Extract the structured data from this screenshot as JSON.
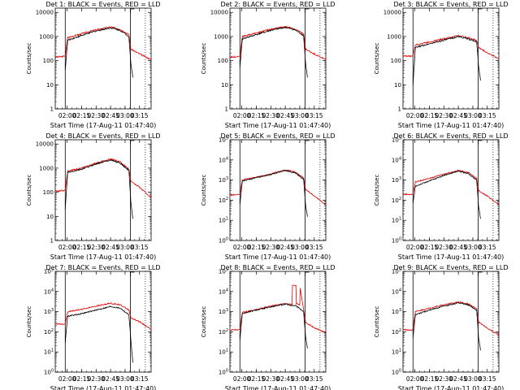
{
  "figure": {
    "xlabel": "Start Time (17-Aug-11 01:47:40)",
    "ylabel": "Counts/sec",
    "colors": {
      "events": "#000000",
      "lld": "#e00000",
      "frame": "#000000"
    }
  },
  "chart_data": [
    {
      "type": "line",
      "title": "Det 1: BLACK = Events, RED = LLD",
      "xlabel": "Start Time (17-Aug-11 01:47:40)",
      "ylabel": "Counts/sec",
      "xlim": [
        "01:47:40",
        "03:27:00"
      ],
      "ylim": [
        1,
        15000
      ],
      "yscale": "log",
      "x_ticks": [
        "02:00",
        "02:15",
        "02:30",
        "02:45",
        "03:00",
        "03:15"
      ],
      "y_tick_style": "plain",
      "y_ticks": [
        1,
        10,
        100,
        1000,
        10000
      ],
      "series": [
        {
          "color": "#e00000",
          "x": [
            "01:47:40",
            "01:57:00",
            "01:58:00",
            "02:00:30",
            "02:15:00",
            "02:30:00",
            "02:45:00",
            "02:55:00",
            "03:04:00",
            "03:06:00",
            "03:16:00",
            "03:27:00"
          ],
          "y": [
            140,
            150,
            160,
            900,
            1300,
            1900,
            2500,
            2000,
            1200,
            300,
            180,
            110
          ]
        },
        {
          "color": "#000000",
          "x": [
            "01:58:00",
            "02:00:30",
            "02:15:00",
            "02:30:00",
            "02:45:00",
            "02:55:00",
            "03:04:00",
            "03:06:00",
            "03:08:00"
          ],
          "y": [
            40,
            700,
            1100,
            1700,
            2300,
            1800,
            1000,
            80,
            20
          ]
        }
      ]
    },
    {
      "type": "line",
      "title": "Det 2: BLACK = Events, RED = LLD",
      "xlabel": "Start Time (17-Aug-11 01:47:40)",
      "ylabel": "Counts/sec",
      "xlim": [
        "01:47:40",
        "03:27:00"
      ],
      "ylim": [
        1,
        15000
      ],
      "yscale": "log",
      "x_ticks": [
        "02:00",
        "02:15",
        "02:30",
        "02:45",
        "03:00",
        "03:15"
      ],
      "y_tick_style": "plain",
      "y_ticks": [
        1,
        10,
        100,
        1000,
        10000
      ],
      "series": [
        {
          "color": "#e00000",
          "x": [
            "01:47:40",
            "01:57:00",
            "01:58:00",
            "02:00:30",
            "02:15:00",
            "02:30:00",
            "02:45:00",
            "02:55:00",
            "03:04:00",
            "03:06:00",
            "03:16:00",
            "03:27:00"
          ],
          "y": [
            140,
            150,
            160,
            1000,
            1400,
            2000,
            2600,
            2000,
            1300,
            300,
            180,
            110
          ]
        },
        {
          "color": "#000000",
          "x": [
            "01:58:00",
            "02:00:30",
            "02:15:00",
            "02:30:00",
            "02:45:00",
            "02:55:00",
            "03:04:00",
            "03:06:00",
            "03:08:00"
          ],
          "y": [
            50,
            800,
            1200,
            1800,
            2400,
            1900,
            1100,
            80,
            20
          ]
        }
      ]
    },
    {
      "type": "line",
      "title": "Det 3: BLACK = Events, RED = LLD",
      "xlabel": "Start Time (17-Aug-11 01:47:40)",
      "ylabel": "Counts/sec",
      "xlim": [
        "01:47:40",
        "03:27:00"
      ],
      "ylim": [
        1,
        15000
      ],
      "yscale": "log",
      "x_ticks": [
        "02:00",
        "02:15",
        "02:30",
        "02:45",
        "03:00",
        "03:15"
      ],
      "y_tick_style": "plain",
      "y_ticks": [
        1,
        10,
        100,
        1000,
        10000
      ],
      "series": [
        {
          "color": "#e00000",
          "x": [
            "01:47:40",
            "01:57:00",
            "01:58:00",
            "02:00:30",
            "02:15:00",
            "02:30:00",
            "02:45:00",
            "02:55:00",
            "03:04:00",
            "03:06:00",
            "03:16:00",
            "03:27:00"
          ],
          "y": [
            160,
            150,
            170,
            450,
            600,
            800,
            1100,
            900,
            700,
            350,
            200,
            120
          ]
        },
        {
          "color": "#000000",
          "x": [
            "01:58:00",
            "02:00:30",
            "02:15:00",
            "02:30:00",
            "02:45:00",
            "02:55:00",
            "03:04:00",
            "03:06:00",
            "03:08:00"
          ],
          "y": [
            10,
            350,
            500,
            700,
            1000,
            800,
            600,
            60,
            15
          ]
        }
      ]
    },
    {
      "type": "line",
      "title": "Det 4: BLACK = Events, RED = LLD",
      "xlabel": "Start Time (17-Aug-11 01:47:40)",
      "ylabel": "Counts/sec",
      "xlim": [
        "01:47:40",
        "03:27:00"
      ],
      "ylim": [
        1,
        15000
      ],
      "yscale": "log",
      "x_ticks": [
        "02:00",
        "02:15",
        "02:30",
        "02:45",
        "03:00",
        "03:15"
      ],
      "y_tick_style": "plain",
      "y_ticks": [
        1,
        10,
        100,
        1000,
        10000
      ],
      "series": [
        {
          "color": "#e00000",
          "x": [
            "01:47:40",
            "01:57:00",
            "01:58:00",
            "02:00:30",
            "02:15:00",
            "02:30:00",
            "02:45:00",
            "02:55:00",
            "03:04:00",
            "03:06:00",
            "03:16:00",
            "03:27:00"
          ],
          "y": [
            110,
            120,
            130,
            750,
            1000,
            1600,
            2400,
            1800,
            900,
            300,
            150,
            60
          ]
        },
        {
          "color": "#000000",
          "x": [
            "01:58:00",
            "02:00:30",
            "02:15:00",
            "02:30:00",
            "02:45:00",
            "02:55:00",
            "03:04:00",
            "03:06:00",
            "03:08:00"
          ],
          "y": [
            20,
            650,
            900,
            1500,
            2200,
            1600,
            800,
            40,
            8
          ]
        }
      ]
    },
    {
      "type": "line",
      "title": "Det 5: BLACK = Events, RED = LLD",
      "xlabel": "Start Time (17-Aug-11 01:47:40)",
      "ylabel": "Counts/sec",
      "xlim": [
        "01:47:40",
        "03:27:00"
      ],
      "ylim": [
        1,
        100000
      ],
      "yscale": "log",
      "x_ticks": [
        "02:00",
        "02:15",
        "02:30",
        "02:45",
        "03:00",
        "03:15"
      ],
      "y_tick_style": "exp",
      "y_ticks": [
        1,
        10,
        100,
        1000,
        10000,
        100000
      ],
      "series": [
        {
          "color": "#e00000",
          "x": [
            "01:47:40",
            "01:57:00",
            "01:58:00",
            "02:00:30",
            "02:15:00",
            "02:30:00",
            "02:45:00",
            "02:55:00",
            "03:04:00",
            "03:06:00",
            "03:16:00",
            "03:27:00"
          ],
          "y": [
            180,
            190,
            200,
            1000,
            1400,
            2000,
            3200,
            2500,
            1300,
            350,
            150,
            60
          ]
        },
        {
          "color": "#000000",
          "x": [
            "01:58:00",
            "02:00:30",
            "02:15:00",
            "02:30:00",
            "02:45:00",
            "02:55:00",
            "03:04:00",
            "03:06:00",
            "03:08:00"
          ],
          "y": [
            60,
            900,
            1300,
            1900,
            3000,
            2300,
            1100,
            60,
            15
          ]
        }
      ]
    },
    {
      "type": "line",
      "title": "Det 6: BLACK = Events, RED = LLD",
      "xlabel": "Start Time (17-Aug-11 01:47:40)",
      "ylabel": "Counts/sec",
      "xlim": [
        "01:47:40",
        "03:27:00"
      ],
      "ylim": [
        1,
        100000
      ],
      "yscale": "log",
      "x_ticks": [
        "02:00",
        "02:15",
        "02:30",
        "02:45",
        "03:00",
        "03:15"
      ],
      "y_tick_style": "exp",
      "y_ticks": [
        1,
        10,
        100,
        1000,
        10000,
        100000
      ],
      "series": [
        {
          "color": "#e00000",
          "x": [
            "01:47:40",
            "01:57:00",
            "01:58:00",
            "02:00:30",
            "02:15:00",
            "02:30:00",
            "02:45:00",
            "02:55:00",
            "03:04:00",
            "03:06:00",
            "03:16:00",
            "03:27:00"
          ],
          "y": [
            200,
            190,
            220,
            800,
            1200,
            2000,
            3000,
            2400,
            1200,
            300,
            150,
            60
          ]
        },
        {
          "color": "#000000",
          "x": [
            "01:58:00",
            "02:00:30",
            "02:15:00",
            "02:30:00",
            "02:45:00",
            "02:55:00",
            "03:04:00",
            "03:06:00",
            "03:08:00"
          ],
          "y": [
            70,
            500,
            900,
            1700,
            2800,
            2100,
            1000,
            50,
            12
          ]
        }
      ]
    },
    {
      "type": "line",
      "title": "Det 7: BLACK = Events, RED = LLD",
      "xlabel": "Start Time (17-Aug-11 01:47:40)",
      "ylabel": "Counts/sec",
      "xlim": [
        "01:47:40",
        "03:27:00"
      ],
      "ylim": [
        1,
        100000
      ],
      "yscale": "log",
      "x_ticks": [
        "02:00",
        "02:15",
        "02:30",
        "02:45",
        "03:00",
        "03:15"
      ],
      "y_tick_style": "exp",
      "y_ticks": [
        1,
        10,
        100,
        1000,
        10000,
        100000
      ],
      "series": [
        {
          "color": "#e00000",
          "x": [
            "01:47:40",
            "01:57:00",
            "01:58:00",
            "02:00:30",
            "02:15:00",
            "02:30:00",
            "02:45:00",
            "02:55:00",
            "03:04:00",
            "03:06:00",
            "03:16:00",
            "03:27:00"
          ],
          "y": [
            250,
            240,
            260,
            1000,
            1300,
            1900,
            2600,
            2200,
            1200,
            500,
            300,
            130
          ]
        },
        {
          "color": "#000000",
          "x": [
            "01:58:00",
            "02:00:30",
            "02:15:00",
            "02:30:00",
            "02:45:00",
            "02:55:00",
            "03:04:00",
            "03:06:00",
            "03:08:00"
          ],
          "y": [
            30,
            600,
            800,
            1200,
            1800,
            1500,
            700,
            40,
            3
          ]
        }
      ]
    },
    {
      "type": "line",
      "title": "Det 8: BLACK = Events, RED = LLD",
      "xlabel": "Start Time (17-Aug-11 01:47:40)",
      "ylabel": "Counts/sec",
      "xlim": [
        "01:47:40",
        "03:27:00"
      ],
      "ylim": [
        1,
        100000
      ],
      "yscale": "log",
      "x_ticks": [
        "02:00",
        "02:15",
        "02:30",
        "02:45",
        "03:00",
        "03:15"
      ],
      "y_tick_style": "exp",
      "y_ticks": [
        1,
        10,
        100,
        1000,
        10000,
        100000
      ],
      "series": [
        {
          "color": "#e00000",
          "x": [
            "01:47:40",
            "01:57:00",
            "01:58:00",
            "02:00:30",
            "02:15:00",
            "02:30:00",
            "02:45:00",
            "02:52:00",
            "02:52:30",
            "02:56:00",
            "02:56:30",
            "03:00:00",
            "03:00:30",
            "03:04:00",
            "03:06:00",
            "03:16:00",
            "03:27:00"
          ],
          "y": [
            120,
            130,
            140,
            900,
            1300,
            1900,
            2600,
            2200,
            20000,
            20000,
            2500,
            2200,
            15000,
            1200,
            300,
            150,
            90
          ]
        },
        {
          "color": "#000000",
          "x": [
            "01:58:00",
            "02:00:30",
            "02:15:00",
            "02:30:00",
            "02:45:00",
            "02:52:00",
            "02:56:00",
            "03:04:00",
            "03:06:00",
            "03:08:00"
          ],
          "y": [
            40,
            800,
            1200,
            1700,
            2400,
            2000,
            2000,
            1000,
            60,
            15
          ]
        }
      ]
    },
    {
      "type": "line",
      "title": "Det 9: BLACK = Events, RED = LLD",
      "xlabel": "Start Time (17-Aug-11 01:47:40)",
      "ylabel": "Counts/sec",
      "xlim": [
        "01:47:40",
        "03:27:00"
      ],
      "ylim": [
        1,
        100000
      ],
      "yscale": "log",
      "x_ticks": [
        "02:00",
        "02:15",
        "02:30",
        "02:45",
        "03:00",
        "03:15"
      ],
      "y_tick_style": "exp",
      "y_ticks": [
        1,
        10,
        100,
        1000,
        10000,
        100000
      ],
      "series": [
        {
          "color": "#e00000",
          "x": [
            "01:47:40",
            "01:57:00",
            "01:58:00",
            "02:00:30",
            "02:15:00",
            "02:30:00",
            "02:45:00",
            "02:55:00",
            "03:04:00",
            "03:06:00",
            "03:16:00",
            "03:27:00"
          ],
          "y": [
            130,
            120,
            150,
            1000,
            1500,
            2200,
            3000,
            2500,
            1400,
            300,
            140,
            70
          ]
        },
        {
          "color": "#000000",
          "x": [
            "01:58:00",
            "02:00:30",
            "02:15:00",
            "02:30:00",
            "02:45:00",
            "02:55:00",
            "03:04:00",
            "03:06:00",
            "03:08:00"
          ],
          "y": [
            50,
            700,
            1200,
            1900,
            2700,
            2200,
            1200,
            50,
            12
          ]
        }
      ]
    }
  ]
}
